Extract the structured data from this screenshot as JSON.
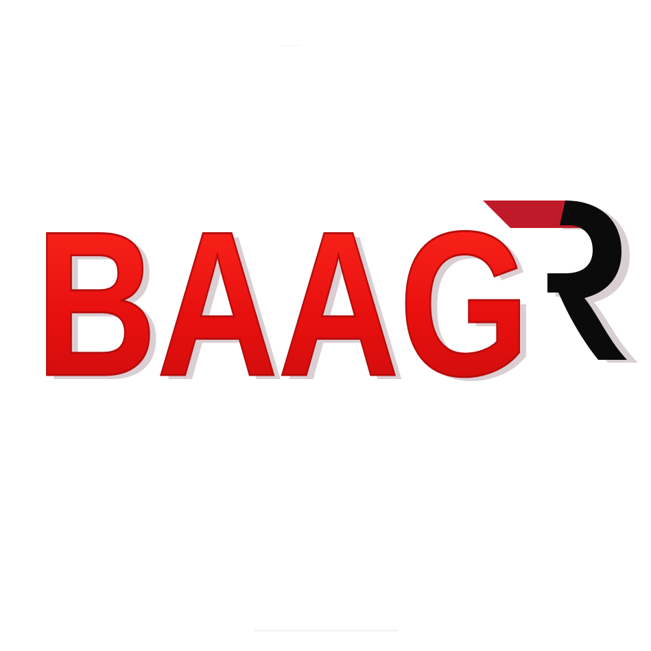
{
  "logo": {
    "wordmark": "BAAG",
    "monogram": "R",
    "colors": {
      "background": "#ffffff",
      "wordmark_fill": "#e8100f",
      "wordmark_edge": "#b80c0c",
      "shadow": "#d9cfd3",
      "swoosh_red": "#c01a2a",
      "monogram_black": "#0b0b0b"
    }
  }
}
